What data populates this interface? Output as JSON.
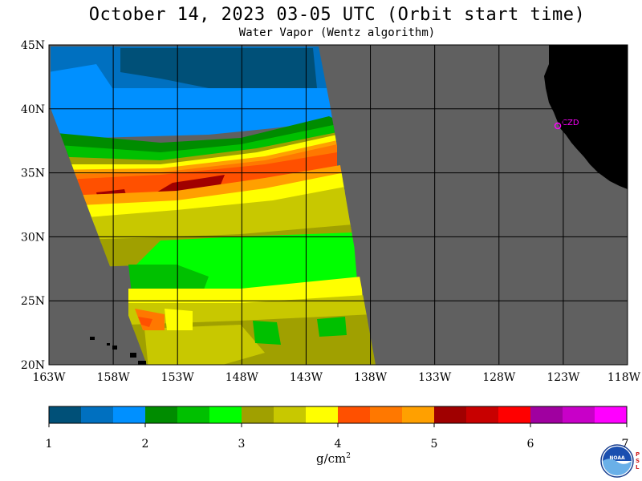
{
  "header": {
    "title": "October 14, 2023  03-05 UTC  (Orbit start time)",
    "subtitle": "Water Vapor (Wentz algorithm)"
  },
  "map": {
    "lat_labels": [
      "45N",
      "40N",
      "35N",
      "30N",
      "25N",
      "20N"
    ],
    "lon_labels": [
      "163W",
      "158W",
      "153W",
      "148W",
      "143W",
      "138W",
      "133W",
      "128W",
      "123W",
      "118W"
    ],
    "lat_range": [
      20,
      45
    ],
    "lon_range": [
      -163,
      -118
    ],
    "station_label": "CZD",
    "colors": {
      "no_data": "#606060",
      "land": "#000000",
      "grid": "#000000",
      "station": "#ff00ff"
    }
  },
  "colorbar": {
    "tick_labels": [
      "1",
      "2",
      "3",
      "4",
      "5",
      "6",
      "7"
    ],
    "unit_label": "g/cm",
    "unit_superscript": "2",
    "colors": [
      "#005078",
      "#0070c0",
      "#0090ff",
      "#008c00",
      "#00c000",
      "#00ff00",
      "#a0a000",
      "#c8c800",
      "#ffff00",
      "#ff5000",
      "#ff7800",
      "#ffa000",
      "#a00000",
      "#c80000",
      "#ff0000",
      "#a000a0",
      "#c800c8",
      "#ff00ff"
    ]
  },
  "logo": {
    "org": "NOAA",
    "side_text": "PSL"
  }
}
